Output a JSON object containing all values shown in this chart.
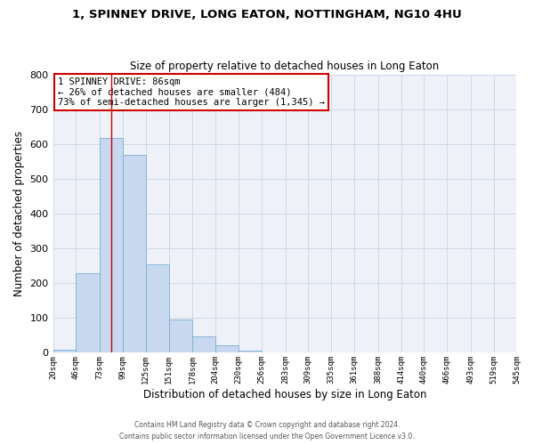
{
  "title": "1, SPINNEY DRIVE, LONG EATON, NOTTINGHAM, NG10 4HU",
  "subtitle": "Size of property relative to detached houses in Long Eaton",
  "xlabel": "Distribution of detached houses by size in Long Eaton",
  "ylabel": "Number of detached properties",
  "bin_labels": [
    "20sqm",
    "46sqm",
    "73sqm",
    "99sqm",
    "125sqm",
    "151sqm",
    "178sqm",
    "204sqm",
    "230sqm",
    "256sqm",
    "283sqm",
    "309sqm",
    "335sqm",
    "361sqm",
    "388sqm",
    "414sqm",
    "440sqm",
    "466sqm",
    "493sqm",
    "519sqm",
    "545sqm"
  ],
  "bar_values": [
    10,
    228,
    618,
    568,
    253,
    95,
    47,
    22,
    5,
    1,
    0,
    0,
    0,
    0,
    0,
    0,
    0,
    0,
    0,
    0
  ],
  "bar_color": "#c8d9ef",
  "bar_edge_color": "#7bafd4",
  "vline_x": 86,
  "bin_edges": [
    20,
    46,
    73,
    99,
    125,
    151,
    178,
    204,
    230,
    256,
    283,
    309,
    335,
    361,
    388,
    414,
    440,
    466,
    493,
    519,
    545
  ],
  "ylim": [
    0,
    800
  ],
  "yticks": [
    0,
    100,
    200,
    300,
    400,
    500,
    600,
    700,
    800
  ],
  "annotation_title": "1 SPINNEY DRIVE: 86sqm",
  "annotation_line2": "← 26% of detached houses are smaller (484)",
  "annotation_line3": "73% of semi-detached houses are larger (1,345) →",
  "vline_color": "#cc0000",
  "annotation_box_color": "#ffffff",
  "annotation_box_edge": "#cc0000",
  "grid_color": "#d0d8e8",
  "bg_color": "#eef2f8",
  "footer1": "Contains HM Land Registry data © Crown copyright and database right 2024.",
  "footer2": "Contains public sector information licensed under the Open Government Licence v3.0."
}
